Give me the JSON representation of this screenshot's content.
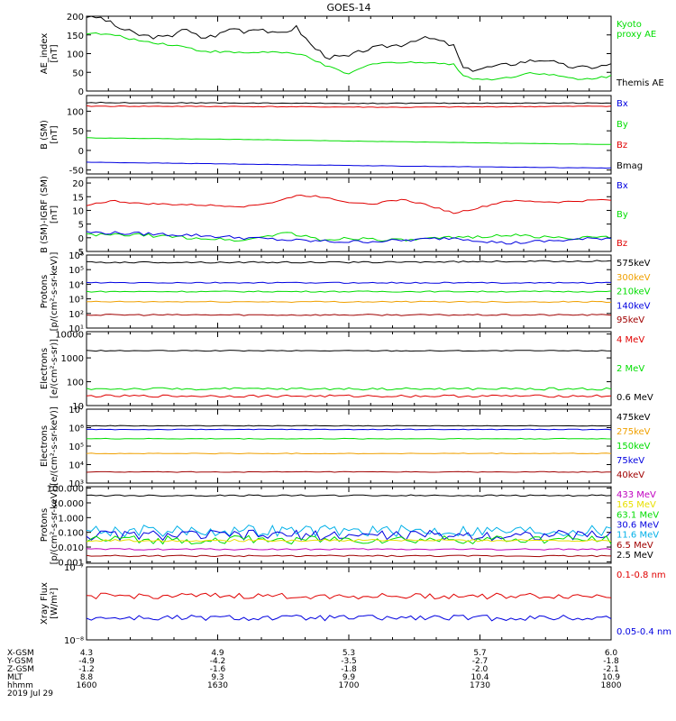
{
  "title": "GOES-14",
  "colors": {
    "black": "#000000",
    "red": "#e00000",
    "green": "#00dd00",
    "blue": "#0000e0",
    "orange": "#f0a000",
    "yellow": "#e8e000",
    "cyan": "#00b0e8",
    "magenta": "#c000c0",
    "darkred": "#a00000"
  },
  "chart_data": [
    {
      "type": "line",
      "id": "ae",
      "ylabel": [
        "AE_index",
        "[nT]"
      ],
      "ylim": [
        0,
        200
      ],
      "yscale": "linear",
      "ticks": [
        "200",
        "150",
        "100",
        "50",
        "0"
      ],
      "tick_values": [
        200,
        150,
        100,
        50,
        0
      ],
      "legend": [
        "Kyoto\nproxy AE",
        "Themis AE"
      ],
      "series": [
        {
          "name": "Themis AE",
          "color": "black",
          "base": 140,
          "amp": 6,
          "points": [
            [
              0,
              200
            ],
            [
              0.03,
              195
            ],
            [
              0.06,
              170
            ],
            [
              0.1,
              150
            ],
            [
              0.14,
              143
            ],
            [
              0.16,
              145
            ],
            [
              0.18,
              168
            ],
            [
              0.2,
              155
            ],
            [
              0.22,
              142
            ],
            [
              0.25,
              150
            ],
            [
              0.28,
              170
            ],
            [
              0.3,
              160
            ],
            [
              0.33,
              170
            ],
            [
              0.36,
              150
            ],
            [
              0.4,
              170
            ],
            [
              0.43,
              120
            ],
            [
              0.46,
              90
            ],
            [
              0.5,
              92
            ],
            [
              0.53,
              110
            ],
            [
              0.57,
              120
            ],
            [
              0.6,
              124
            ],
            [
              0.63,
              140
            ],
            [
              0.66,
              140
            ],
            [
              0.7,
              120
            ],
            [
              0.72,
              55
            ],
            [
              0.76,
              62
            ],
            [
              0.8,
              70
            ],
            [
              0.84,
              80
            ],
            [
              0.88,
              85
            ],
            [
              0.9,
              70
            ],
            [
              0.94,
              62
            ],
            [
              0.97,
              65
            ],
            [
              1,
              70
            ]
          ]
        },
        {
          "name": "Kyoto proxy AE",
          "color": "green",
          "base": 110,
          "amp": 3,
          "points": [
            [
              0,
              155
            ],
            [
              0.05,
              150
            ],
            [
              0.1,
              135
            ],
            [
              0.18,
              120
            ],
            [
              0.22,
              107
            ],
            [
              0.3,
              102
            ],
            [
              0.35,
              105
            ],
            [
              0.42,
              95
            ],
            [
              0.45,
              70
            ],
            [
              0.48,
              55
            ],
            [
              0.5,
              45
            ],
            [
              0.53,
              65
            ],
            [
              0.56,
              78
            ],
            [
              0.6,
              75
            ],
            [
              0.65,
              78
            ],
            [
              0.7,
              70
            ],
            [
              0.72,
              40
            ],
            [
              0.75,
              30
            ],
            [
              0.8,
              35
            ],
            [
              0.85,
              50
            ],
            [
              0.9,
              40
            ],
            [
              0.94,
              30
            ],
            [
              1,
              40
            ]
          ]
        }
      ]
    },
    {
      "type": "line",
      "id": "bsm",
      "ylabel": [
        "B (SM)",
        "[nT]"
      ],
      "ylim": [
        -60,
        140
      ],
      "yscale": "linear",
      "ticks": [
        "100",
        "50",
        "0",
        "-50"
      ],
      "tick_values": [
        100,
        50,
        0,
        -50
      ],
      "legend": [
        "Bx",
        "By",
        "Bz",
        "Bmag"
      ],
      "series": [
        {
          "name": "Bmag",
          "color": "black",
          "base": 0,
          "amp": 1,
          "points": [
            [
              0,
              122
            ],
            [
              0.5,
              120
            ],
            [
              1,
              121
            ]
          ]
        },
        {
          "name": "Bz",
          "color": "red",
          "base": 0,
          "amp": 1,
          "points": [
            [
              0,
              113
            ],
            [
              0.3,
              112
            ],
            [
              0.6,
              110
            ],
            [
              1,
              113
            ]
          ]
        },
        {
          "name": "By",
          "color": "green",
          "base": 0,
          "amp": 0.5,
          "points": [
            [
              0,
              32
            ],
            [
              0.3,
              28
            ],
            [
              0.6,
              22
            ],
            [
              1,
              15
            ]
          ]
        },
        {
          "name": "Bx",
          "color": "blue",
          "base": 0,
          "amp": 0.5,
          "points": [
            [
              0,
              -30
            ],
            [
              0.3,
              -35
            ],
            [
              0.6,
              -40
            ],
            [
              1,
              -45
            ]
          ]
        }
      ]
    },
    {
      "type": "line",
      "id": "bigrf",
      "ylabel": [
        "B (SM)-IGRF (SM)",
        "[nT]"
      ],
      "ylim": [
        -5,
        22
      ],
      "yscale": "linear",
      "ticks": [
        "20",
        "15",
        "10",
        "5",
        "0",
        "-5"
      ],
      "tick_values": [
        20,
        15,
        10,
        5,
        0,
        -5
      ],
      "legend": [
        "Bx",
        "By",
        "Bz"
      ],
      "series": [
        {
          "name": "Bz",
          "color": "red",
          "base": 0,
          "amp": 0.3,
          "points": [
            [
              0,
              12
            ],
            [
              0.05,
              13.5
            ],
            [
              0.1,
              12.5
            ],
            [
              0.2,
              12
            ],
            [
              0.3,
              11.5
            ],
            [
              0.36,
              13
            ],
            [
              0.4,
              15.5
            ],
            [
              0.45,
              15
            ],
            [
              0.5,
              13
            ],
            [
              0.55,
              12.5
            ],
            [
              0.6,
              14
            ],
            [
              0.65,
              12
            ],
            [
              0.7,
              9
            ],
            [
              0.75,
              11
            ],
            [
              0.8,
              13.5
            ],
            [
              0.9,
              13
            ],
            [
              1,
              14
            ]
          ]
        },
        {
          "name": "By",
          "color": "green",
          "base": 0,
          "amp": 0.6,
          "points": [
            [
              0,
              1
            ],
            [
              0.1,
              1
            ],
            [
              0.2,
              0
            ],
            [
              0.3,
              -1
            ],
            [
              0.38,
              2
            ],
            [
              0.45,
              -1
            ],
            [
              0.5,
              0
            ],
            [
              0.6,
              -1
            ],
            [
              0.7,
              0
            ],
            [
              0.8,
              1
            ],
            [
              0.9,
              0
            ],
            [
              1,
              0
            ]
          ]
        },
        {
          "name": "Bx",
          "color": "blue",
          "base": 0,
          "amp": 0.6,
          "points": [
            [
              0,
              2
            ],
            [
              0.1,
              1.5
            ],
            [
              0.2,
              1
            ],
            [
              0.3,
              0
            ],
            [
              0.4,
              -1
            ],
            [
              0.5,
              -1.5
            ],
            [
              0.6,
              -1
            ],
            [
              0.7,
              0
            ],
            [
              0.8,
              -2
            ],
            [
              0.9,
              -1
            ],
            [
              1,
              0
            ]
          ]
        }
      ]
    },
    {
      "type": "line",
      "id": "protons-low",
      "ylabel": [
        "Protons",
        "[p/(cm²-s-sr-keV)]"
      ],
      "ylim": [
        1,
        6
      ],
      "yscale": "log",
      "ticks": [
        "10⁶",
        "10⁵",
        "10⁴",
        "10³",
        "10²",
        "10¹"
      ],
      "tick_values": [
        6,
        5,
        4,
        3,
        2,
        1
      ],
      "legend": [
        "575keV",
        "300keV",
        "210keV",
        "140keV",
        "95keV"
      ],
      "series": [
        {
          "name": "575keV",
          "color": "black",
          "base": 0,
          "amp": 0.05,
          "points": [
            [
              0,
              5.5
            ],
            [
              0.5,
              5.5
            ],
            [
              1,
              5.6
            ]
          ]
        },
        {
          "name": "140keV",
          "color": "blue",
          "base": 0,
          "amp": 0.04,
          "points": [
            [
              0,
              4.1
            ],
            [
              1,
              4.1
            ]
          ]
        },
        {
          "name": "210keV",
          "color": "green",
          "base": 0,
          "amp": 0.04,
          "points": [
            [
              0,
              3.5
            ],
            [
              1,
              3.5
            ]
          ]
        },
        {
          "name": "300keV",
          "color": "orange",
          "base": 0,
          "amp": 0.04,
          "points": [
            [
              0,
              2.8
            ],
            [
              1,
              2.8
            ]
          ]
        },
        {
          "name": "95keV",
          "color": "darkred",
          "base": 0,
          "amp": 0.05,
          "points": [
            [
              0,
              1.9
            ],
            [
              1,
              1.9
            ]
          ]
        }
      ]
    },
    {
      "type": "line",
      "id": "electrons-mev",
      "ylabel": [
        "Electrons",
        "[e/(cm²-s-sr)]"
      ],
      "ylim": [
        1,
        4.1
      ],
      "yscale": "log",
      "ticks": [
        "10000",
        "1000",
        "100",
        "10"
      ],
      "tick_values": [
        4,
        3,
        2,
        1
      ],
      "legend": [
        "4 MeV",
        "2 MeV",
        "0.6 MeV"
      ],
      "series": [
        {
          "name": "0.6 MeV",
          "color": "black",
          "base": 0,
          "amp": 0.02,
          "points": [
            [
              0,
              3.3
            ],
            [
              1,
              3.3
            ]
          ]
        },
        {
          "name": "2 MeV",
          "color": "green",
          "base": 0,
          "amp": 0.05,
          "points": [
            [
              0,
              1.7
            ],
            [
              1,
              1.7
            ]
          ]
        },
        {
          "name": "4 MeV",
          "color": "red",
          "base": 0,
          "amp": 0.05,
          "points": [
            [
              0,
              1.4
            ],
            [
              1,
              1.4
            ]
          ]
        }
      ]
    },
    {
      "type": "line",
      "id": "electrons-kev",
      "ylabel": [
        "Electrons",
        "[e/(cm²-s-sr-keV)]"
      ],
      "ylim": [
        3,
        7
      ],
      "yscale": "log",
      "ticks": [
        "10⁷",
        "10⁶",
        "10⁵",
        "10⁴",
        "10³"
      ],
      "tick_values": [
        7,
        6,
        5,
        4,
        3
      ],
      "legend": [
        "475keV",
        "275keV",
        "150keV",
        "75keV",
        "40keV"
      ],
      "series": [
        {
          "name": "475keV",
          "color": "black",
          "base": 0,
          "amp": 0.02,
          "points": [
            [
              0,
              6.1
            ],
            [
              1,
              6.1
            ]
          ]
        },
        {
          "name": "75keV",
          "color": "blue",
          "base": 0,
          "amp": 0.02,
          "points": [
            [
              0,
              5.9
            ],
            [
              1,
              5.9
            ]
          ]
        },
        {
          "name": "150keV",
          "color": "green",
          "base": 0,
          "amp": 0.02,
          "points": [
            [
              0,
              5.4
            ],
            [
              1,
              5.4
            ]
          ]
        },
        {
          "name": "275keV",
          "color": "orange",
          "base": 0,
          "amp": 0.02,
          "points": [
            [
              0,
              4.6
            ],
            [
              1,
              4.6
            ]
          ]
        },
        {
          "name": "40keV",
          "color": "darkred",
          "base": 0,
          "amp": 0.02,
          "points": [
            [
              0,
              3.6
            ],
            [
              1,
              3.6
            ]
          ]
        }
      ]
    },
    {
      "type": "line",
      "id": "protons-mev",
      "ylabel": [
        "Protons",
        "[p/(cm²-s-sr-keV)]"
      ],
      "ylim": [
        -3.1,
        2.1
      ],
      "yscale": "log",
      "ticks": [
        "100.000",
        "10.000",
        "1.000",
        "0.100",
        "0.010",
        "0.001"
      ],
      "tick_values": [
        2,
        1,
        0,
        -1,
        -2,
        -3
      ],
      "legend": [
        "433 MeV",
        "165 MeV",
        "63.1 MeV",
        "30.6 MeV",
        "11.6 MeV",
        "6.5 MeV",
        "2.5 MeV"
      ],
      "series": [
        {
          "name": "2.5 MeV",
          "color": "black",
          "base": 0,
          "amp": 0.05,
          "points": [
            [
              0,
              1.5
            ],
            [
              1,
              1.5
            ]
          ]
        },
        {
          "name": "11.6 MeV",
          "color": "cyan",
          "base": 0,
          "amp": 0.4,
          "points": [
            [
              0,
              -0.9
            ],
            [
              1,
              -0.9
            ]
          ]
        },
        {
          "name": "30.6 MeV",
          "color": "blue",
          "base": 0,
          "amp": 0.35,
          "points": [
            [
              0,
              -1.2
            ],
            [
              1,
              -1.2
            ]
          ]
        },
        {
          "name": "63.1 MeV",
          "color": "green",
          "base": 0,
          "amp": 0.3,
          "points": [
            [
              0,
              -1.5
            ],
            [
              1,
              -1.5
            ]
          ]
        },
        {
          "name": "165 MeV",
          "color": "yellow",
          "base": 0,
          "amp": 0.08,
          "points": [
            [
              0,
              -1.55
            ],
            [
              1,
              -1.55
            ]
          ]
        },
        {
          "name": "433 MeV",
          "color": "magenta",
          "base": 0,
          "amp": 0.05,
          "points": [
            [
              0,
              -2.15
            ],
            [
              1,
              -2.15
            ]
          ]
        },
        {
          "name": "6.5 MeV",
          "color": "darkred",
          "base": 0,
          "amp": 0.05,
          "points": [
            [
              0,
              -2.6
            ],
            [
              1,
              -2.6
            ]
          ]
        }
      ]
    },
    {
      "type": "line",
      "id": "xray",
      "ylabel": [
        "Xray Flux",
        "[W/m²]"
      ],
      "ylim": [
        -8,
        -7
      ],
      "yscale": "log",
      "ticks": [
        "10⁻⁷",
        "10⁻⁸"
      ],
      "tick_values": [
        -7,
        -8
      ],
      "legend": [
        "0.1-0.8 nm",
        "0.05-0.4 nm"
      ],
      "series": [
        {
          "name": "0.1-0.8 nm",
          "color": "red",
          "base": 0,
          "amp": 0.04,
          "points": [
            [
              0,
              -7.4
            ],
            [
              1,
              -7.4
            ]
          ]
        },
        {
          "name": "0.05-0.4 nm",
          "color": "blue",
          "base": 0,
          "amp": 0.04,
          "points": [
            [
              0,
              -7.7
            ],
            [
              1,
              -7.7
            ]
          ]
        }
      ]
    }
  ],
  "axis_labels": {
    "rows": [
      "X-GSM",
      "Y-GSM",
      "Z-GSM",
      "MLT",
      "hhmm",
      "2019 Jul 29"
    ],
    "columns": [
      [
        "4.3",
        "-4.9",
        "-1.2",
        "8.8",
        "1600"
      ],
      [
        "4.9",
        "-4.2",
        "-1.6",
        "9.3",
        "1630"
      ],
      [
        "5.3",
        "-3.5",
        "-1.8",
        "9.9",
        "1700"
      ],
      [
        "5.7",
        "-2.7",
        "-2.0",
        "10.4",
        "1730"
      ],
      [
        "6.0",
        "-1.8",
        "-2.1",
        "10.9",
        "1800"
      ]
    ]
  }
}
